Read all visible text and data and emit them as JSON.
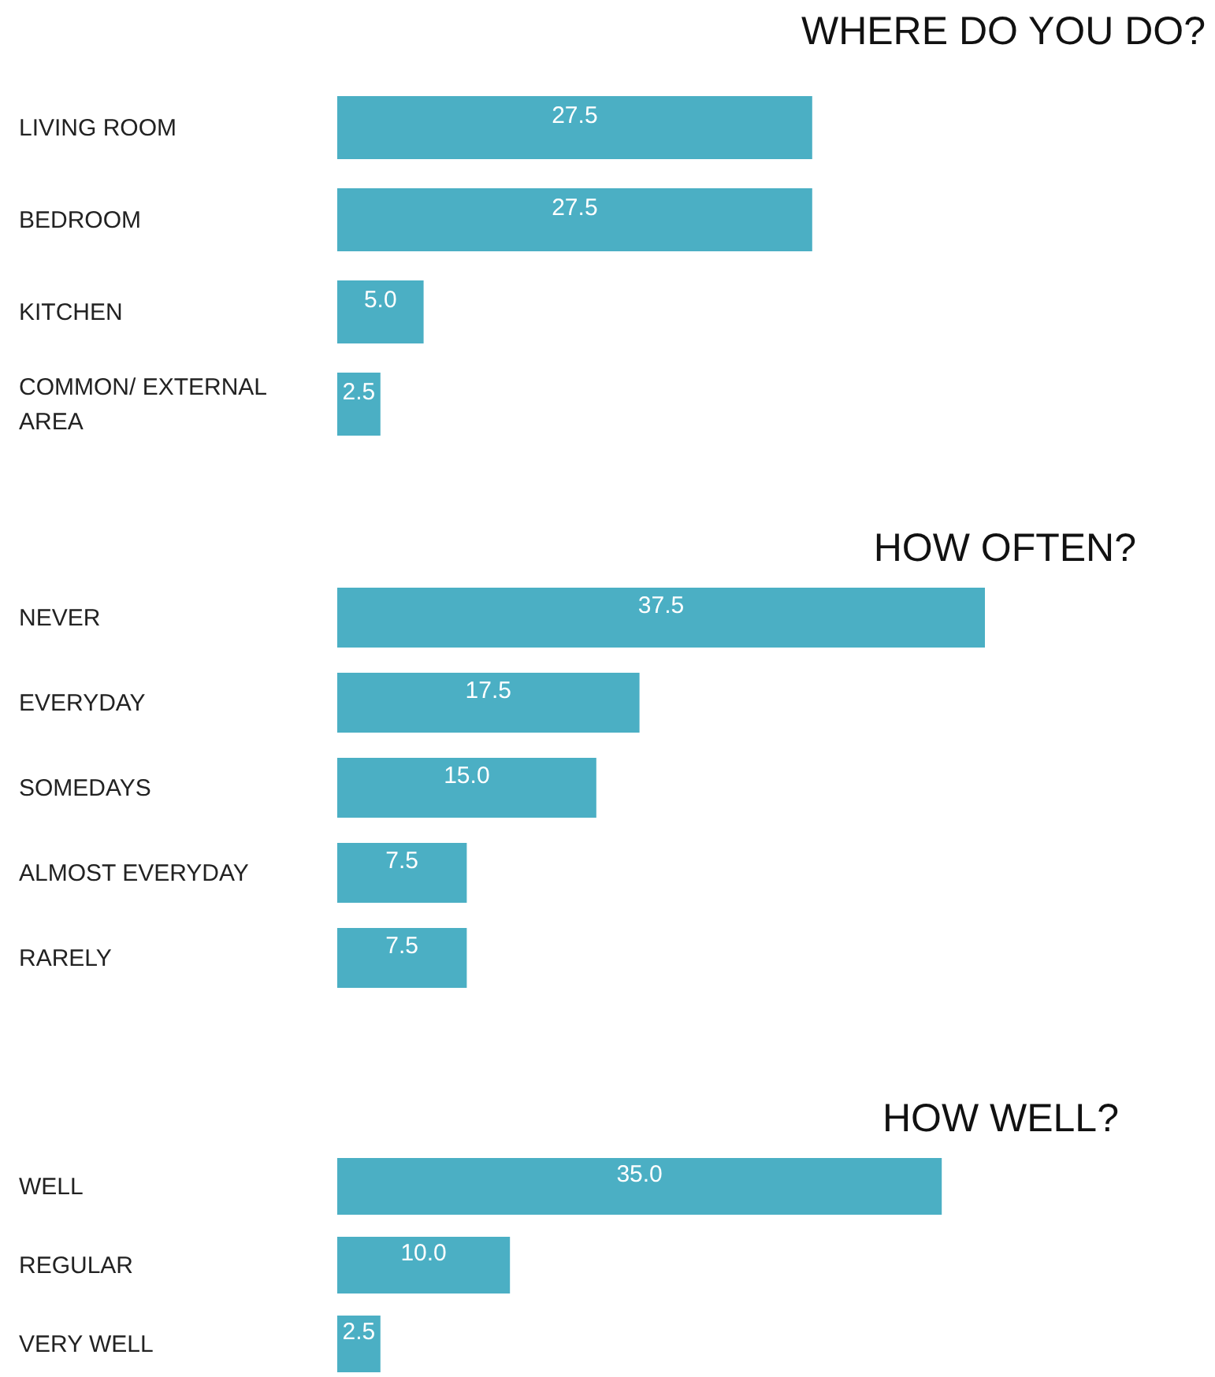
{
  "chart_data": [
    {
      "type": "bar",
      "orientation": "horizontal",
      "title": "WHERE DO YOU DO?",
      "categories": [
        "LIVING ROOM",
        "BEDROOM",
        "KITCHEN",
        "COMMON/ EXTERNAL AREA"
      ],
      "values": [
        27.5,
        27.5,
        5.0,
        2.5
      ],
      "value_labels": [
        "27.5",
        "27.5",
        "5.0",
        "2.5"
      ],
      "color": "#4bafc4"
    },
    {
      "type": "bar",
      "orientation": "horizontal",
      "title": "HOW OFTEN?",
      "categories": [
        "NEVER",
        "EVERYDAY",
        "SOMEDAYS",
        "ALMOST EVERYDAY",
        "RARELY"
      ],
      "values": [
        37.5,
        17.5,
        15.0,
        7.5,
        7.5
      ],
      "value_labels": [
        "37.5",
        "17.5",
        "15.0",
        "7.5",
        "7.5"
      ],
      "color": "#4bafc4"
    },
    {
      "type": "bar",
      "orientation": "horizontal",
      "title": "HOW WELL?",
      "categories": [
        "WELL",
        "REGULAR",
        "VERY WELL"
      ],
      "values": [
        35.0,
        10.0,
        2.5
      ],
      "value_labels": [
        "35.0",
        "10.0",
        "2.5"
      ],
      "color": "#4bafc4"
    }
  ]
}
